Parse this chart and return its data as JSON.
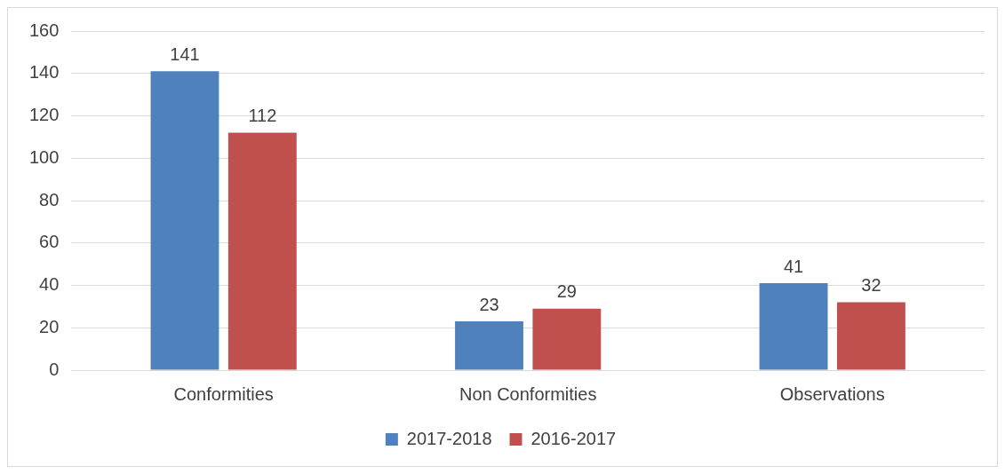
{
  "chart_data": {
    "type": "bar",
    "categories": [
      "Conformities",
      "Non Conformities",
      "Observations"
    ],
    "series": [
      {
        "name": "2017-2018",
        "color": "#4f81bd",
        "values": [
          141,
          23,
          41
        ]
      },
      {
        "name": "2016-2017",
        "color": "#c0504d",
        "values": [
          112,
          29,
          32
        ]
      }
    ],
    "ylim": [
      0,
      160
    ],
    "yticks": [
      0,
      20,
      40,
      60,
      80,
      100,
      120,
      140,
      160
    ],
    "grid": "y",
    "legend": "bottom",
    "data_labels": true
  }
}
